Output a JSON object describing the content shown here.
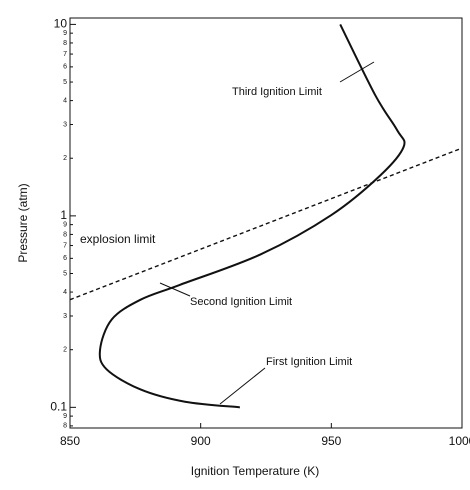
{
  "chart_data": {
    "type": "line",
    "xlabel": "Ignition Temperature (K)",
    "ylabel": "Pressure (atm)",
    "xlim": [
      850,
      1000
    ],
    "xticks": [
      850,
      900,
      950,
      1000
    ],
    "ylim": [
      0.078,
      10.8
    ],
    "yscale": "log",
    "yticks": [
      {
        "value": 0.08,
        "label": "8"
      },
      {
        "value": 0.09,
        "label": "9"
      },
      0.1,
      {
        "value": 0.2,
        "label": "2"
      },
      {
        "value": 0.3,
        "label": "3"
      },
      {
        "value": 0.4,
        "label": "4"
      },
      {
        "value": 0.5,
        "label": "5"
      },
      {
        "value": 0.6,
        "label": "6"
      },
      {
        "value": 0.7,
        "label": "7"
      },
      {
        "value": 0.8,
        "label": "8"
      },
      {
        "value": 0.9,
        "label": "9"
      },
      1,
      2,
      3,
      4,
      5,
      6,
      7,
      8,
      9,
      10
    ],
    "series": [
      {
        "color": "#111111",
        "style": "solid",
        "x": [
          953.4,
          966.8,
          975.2,
          977.7,
          969,
          950,
          923,
          892,
          877,
          866,
          861.5,
          864,
          877,
          894,
          915
        ],
        "values": [
          10,
          4.27,
          2.8,
          2.3,
          1.64,
          1.01,
          0.63,
          0.436,
          0.365,
          0.288,
          0.2,
          0.158,
          0.124,
          0.107,
          0.1
        ]
      },
      {
        "color": "#111111",
        "style": "dashed",
        "x": [
          850,
          1000
        ],
        "values": [
          0.365,
          2.26
        ]
      }
    ],
    "annotations": [
      "Third Ignition Limit",
      "explosion limit",
      "Second Ignition Limit",
      "First Ignition Limit"
    ]
  }
}
